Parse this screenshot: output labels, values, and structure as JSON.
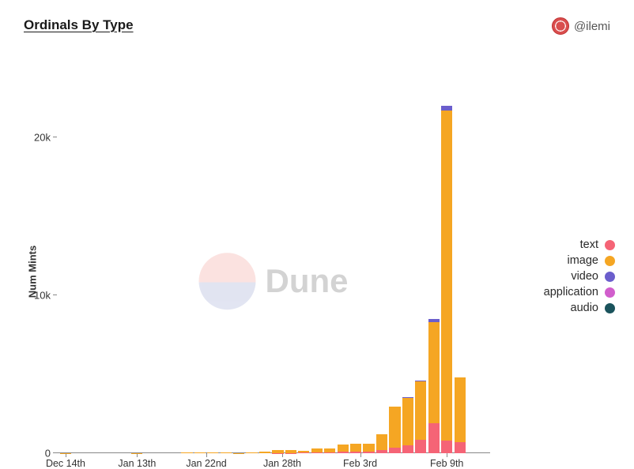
{
  "title": "Ordinals By Type",
  "author_handle": "@ilemi",
  "watermark_text": "Dune",
  "chart": {
    "type": "stacked-bar",
    "y_label": "Num Mints",
    "y_ticks": [
      0,
      10000,
      20000
    ],
    "y_tick_labels": [
      "0",
      "10k",
      "20k"
    ],
    "y_max": 22500,
    "x_tick_labels": [
      "Dec 14th",
      "Jan 13th",
      "Jan 22nd",
      "Jan 28th",
      "Feb 3rd",
      "Feb 9th"
    ],
    "x_tick_positions": [
      0.02,
      0.185,
      0.345,
      0.52,
      0.7,
      0.9
    ],
    "series": [
      {
        "key": "text",
        "label": "text",
        "color": "#f56476"
      },
      {
        "key": "image",
        "label": "image",
        "color": "#f5a623"
      },
      {
        "key": "video",
        "label": "video",
        "color": "#6b5ecc"
      },
      {
        "key": "application",
        "label": "application",
        "color": "#d15ecc"
      },
      {
        "key": "audio",
        "label": "audio",
        "color": "#1a535c"
      }
    ],
    "bar_width_rel": 0.026,
    "bar_gap_rel": 0.005,
    "bars": [
      {
        "x": 0.02,
        "text": 0,
        "image": 5,
        "video": 0,
        "application": 0,
        "audio": 0
      },
      {
        "x": 0.185,
        "text": 0,
        "image": 5,
        "video": 0,
        "application": 0,
        "audio": 0
      },
      {
        "x": 0.3,
        "text": 0,
        "image": 30,
        "video": 0,
        "application": 0,
        "audio": 0
      },
      {
        "x": 0.33,
        "text": 0,
        "image": 40,
        "video": 0,
        "application": 0,
        "audio": 0
      },
      {
        "x": 0.36,
        "text": 0,
        "image": 50,
        "video": 0,
        "application": 0,
        "audio": 0
      },
      {
        "x": 0.39,
        "text": 0,
        "image": 40,
        "video": 0,
        "application": 0,
        "audio": 0
      },
      {
        "x": 0.42,
        "text": 0,
        "image": 10,
        "video": 0,
        "application": 0,
        "audio": 0
      },
      {
        "x": 0.45,
        "text": 0,
        "image": 60,
        "video": 0,
        "application": 0,
        "audio": 0
      },
      {
        "x": 0.48,
        "text": 0,
        "image": 90,
        "video": 0,
        "application": 0,
        "audio": 0
      },
      {
        "x": 0.51,
        "text": 10,
        "image": 190,
        "video": 0,
        "application": 0,
        "audio": 0
      },
      {
        "x": 0.54,
        "text": 20,
        "image": 180,
        "video": 0,
        "application": 0,
        "audio": 0
      },
      {
        "x": 0.57,
        "text": 30,
        "image": 120,
        "video": 0,
        "application": 0,
        "audio": 0
      },
      {
        "x": 0.6,
        "text": 50,
        "image": 250,
        "video": 0,
        "application": 0,
        "audio": 0
      },
      {
        "x": 0.63,
        "text": 40,
        "image": 260,
        "video": 0,
        "application": 0,
        "audio": 0
      },
      {
        "x": 0.66,
        "text": 80,
        "image": 470,
        "video": 0,
        "application": 0,
        "audio": 0
      },
      {
        "x": 0.69,
        "text": 100,
        "image": 500,
        "video": 0,
        "application": 0,
        "audio": 0
      },
      {
        "x": 0.72,
        "text": 120,
        "image": 480,
        "video": 0,
        "application": 0,
        "audio": 0
      },
      {
        "x": 0.75,
        "text": 200,
        "image": 1000,
        "video": 0,
        "application": 0,
        "audio": 0
      },
      {
        "x": 0.78,
        "text": 350,
        "image": 2600,
        "video": 0,
        "application": 0,
        "audio": 0
      },
      {
        "x": 0.81,
        "text": 500,
        "image": 3000,
        "video": 30,
        "application": 0,
        "audio": 0
      },
      {
        "x": 0.84,
        "text": 850,
        "image": 3700,
        "video": 50,
        "application": 0,
        "audio": 0
      },
      {
        "x": 0.87,
        "text": 1900,
        "image": 6400,
        "video": 200,
        "application": 0,
        "audio": 0
      },
      {
        "x": 0.9,
        "text": 800,
        "image": 20900,
        "video": 300,
        "application": 0,
        "audio": 0
      },
      {
        "x": 0.93,
        "text": 700,
        "image": 4100,
        "video": 0,
        "application": 0,
        "audio": 0
      }
    ]
  }
}
